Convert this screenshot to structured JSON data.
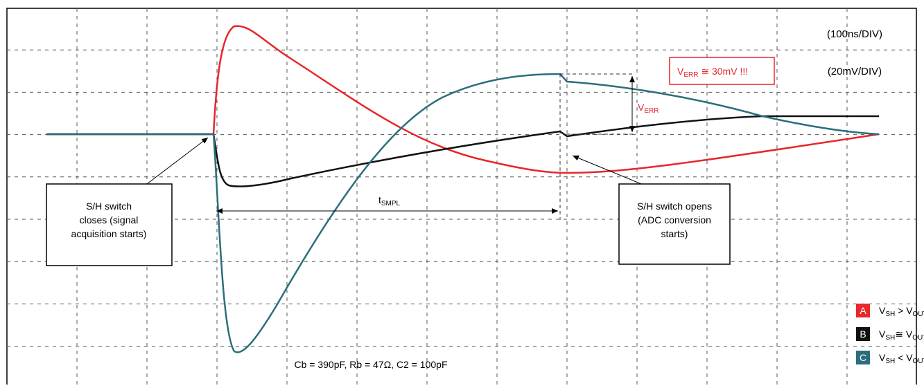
{
  "scale": {
    "time": "(100ns/DIV)",
    "voltage": "(20mV/DIV)"
  },
  "error_note": {
    "v": "V",
    "sub": "ERR",
    "rest": " ≅ 30mV !!!"
  },
  "verr_label": {
    "v": "V",
    "sub": "ERR"
  },
  "tsmpl_label": {
    "t": "t",
    "sub": "SMPL"
  },
  "boxes": [
    {
      "lines": [
        "S/H switch",
        "closes (signal",
        "acquisition starts)"
      ]
    },
    {
      "lines": [
        "S/H switch opens",
        "(ADC conversion",
        "starts)"
      ]
    }
  ],
  "legend": [
    {
      "key": "A",
      "parts": [
        "V",
        "SH",
        " > V",
        "OUT"
      ]
    },
    {
      "key": "B",
      "parts": [
        "V",
        "SH",
        "≅ V",
        "OUT"
      ]
    },
    {
      "key": "C",
      "parts": [
        "V",
        "SH",
        " < V",
        "OUT"
      ]
    }
  ],
  "caption": "Cb = 390pF, Rb = 47Ω, C2 = 100pF"
}
